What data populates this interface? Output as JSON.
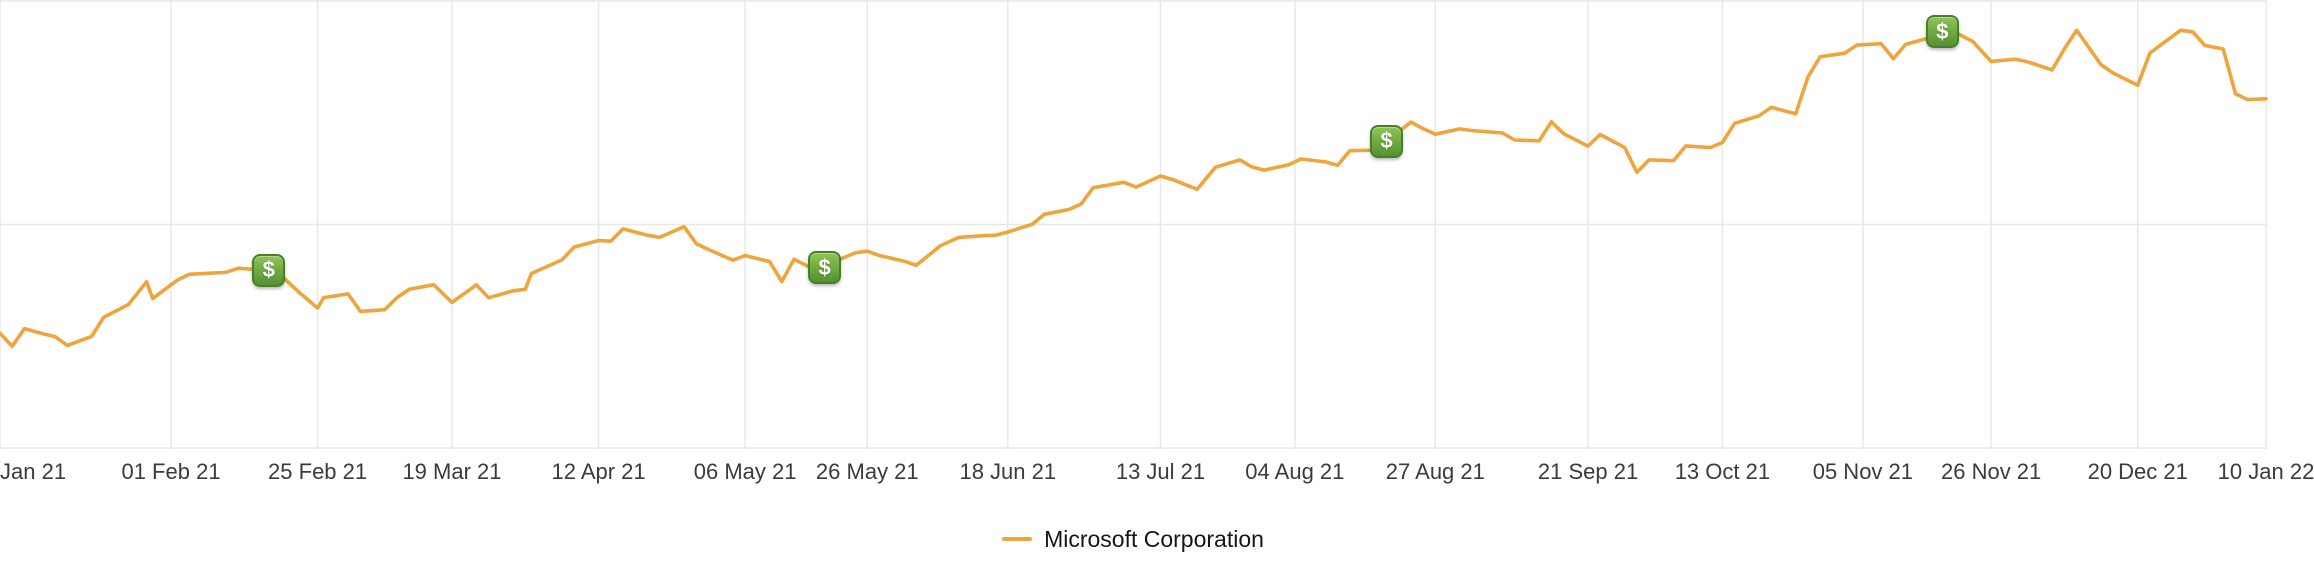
{
  "chart_data": {
    "type": "line",
    "x_start": "2021-01-04",
    "x_end": "2022-01-10",
    "ylim": [
      170,
      355
    ],
    "grid": true,
    "legend_position": "bottom-center",
    "colors": {
      "line": "#F0A43C",
      "grid": "#e8e8e8",
      "axis_text": "#3b3b3b",
      "marker_top": "#8FC455",
      "marker_bottom": "#549130",
      "marker_border": "#497F2B",
      "marker_text": "#ffffff"
    },
    "x_ticks": [
      {
        "date": "2021-01-04",
        "label": "Jan 21",
        "align": "left"
      },
      {
        "date": "2021-02-01",
        "label": "01 Feb 21"
      },
      {
        "date": "2021-02-25",
        "label": "25 Feb 21"
      },
      {
        "date": "2021-03-19",
        "label": "19 Mar 21"
      },
      {
        "date": "2021-04-12",
        "label": "12 Apr 21"
      },
      {
        "date": "2021-05-06",
        "label": "06 May 21"
      },
      {
        "date": "2021-05-26",
        "label": "26 May 21"
      },
      {
        "date": "2021-06-18",
        "label": "18 Jun 21"
      },
      {
        "date": "2021-07-13",
        "label": "13 Jul 21"
      },
      {
        "date": "2021-08-04",
        "label": "04 Aug 21"
      },
      {
        "date": "2021-08-27",
        "label": "27 Aug 21"
      },
      {
        "date": "2021-09-21",
        "label": "21 Sep 21"
      },
      {
        "date": "2021-10-13",
        "label": "13 Oct 21"
      },
      {
        "date": "2021-11-05",
        "label": "05 Nov 21"
      },
      {
        "date": "2021-11-26",
        "label": "26 Nov 21"
      },
      {
        "date": "2021-12-20",
        "label": "20 Dec 21"
      },
      {
        "date": "2022-01-10",
        "label": "10 Jan 22"
      }
    ],
    "event_markers": [
      {
        "date": "2021-02-17",
        "type": "dividend",
        "label": "$"
      },
      {
        "date": "2021-05-19",
        "type": "dividend",
        "label": "$"
      },
      {
        "date": "2021-08-19",
        "type": "dividend",
        "label": "$"
      },
      {
        "date": "2021-11-18",
        "type": "dividend",
        "label": "$"
      }
    ],
    "series": [
      {
        "name": "Microsoft Corporation",
        "color": "#F0A43C",
        "points": [
          [
            "2021-01-04",
            217.7
          ],
          [
            "2021-01-06",
            212.3
          ],
          [
            "2021-01-08",
            219.6
          ],
          [
            "2021-01-11",
            217.5
          ],
          [
            "2021-01-13",
            216.3
          ],
          [
            "2021-01-15",
            212.7
          ],
          [
            "2021-01-19",
            216.4
          ],
          [
            "2021-01-21",
            224.3
          ],
          [
            "2021-01-25",
            229.5
          ],
          [
            "2021-01-28",
            238.9
          ],
          [
            "2021-01-29",
            232.0
          ],
          [
            "2021-02-02",
            239.5
          ],
          [
            "2021-02-04",
            242.0
          ],
          [
            "2021-02-08",
            242.5
          ],
          [
            "2021-02-10",
            242.8
          ],
          [
            "2021-02-12",
            244.5
          ],
          [
            "2021-02-16",
            243.7
          ],
          [
            "2021-02-18",
            243.8
          ],
          [
            "2021-02-22",
            234.5
          ],
          [
            "2021-02-25",
            228.1
          ],
          [
            "2021-02-26",
            232.4
          ],
          [
            "2021-03-02",
            233.9
          ],
          [
            "2021-03-04",
            226.7
          ],
          [
            "2021-03-08",
            227.4
          ],
          [
            "2021-03-10",
            232.4
          ],
          [
            "2021-03-12",
            235.8
          ],
          [
            "2021-03-16",
            237.7
          ],
          [
            "2021-03-19",
            230.4
          ],
          [
            "2021-03-23",
            237.6
          ],
          [
            "2021-03-25",
            232.3
          ],
          [
            "2021-03-29",
            235.2
          ],
          [
            "2021-03-31",
            235.8
          ],
          [
            "2021-04-01",
            242.3
          ],
          [
            "2021-04-06",
            247.9
          ],
          [
            "2021-04-08",
            253.2
          ],
          [
            "2021-04-12",
            255.9
          ],
          [
            "2021-04-14",
            255.6
          ],
          [
            "2021-04-16",
            260.7
          ],
          [
            "2021-04-20",
            258.1
          ],
          [
            "2021-04-22",
            257.2
          ],
          [
            "2021-04-26",
            261.6
          ],
          [
            "2021-04-28",
            254.6
          ],
          [
            "2021-04-30",
            252.2
          ],
          [
            "2021-05-04",
            247.8
          ],
          [
            "2021-05-06",
            249.7
          ],
          [
            "2021-05-10",
            247.2
          ],
          [
            "2021-05-12",
            239.0
          ],
          [
            "2021-05-14",
            248.2
          ],
          [
            "2021-05-18",
            243.1
          ],
          [
            "2021-05-20",
            246.5
          ],
          [
            "2021-05-24",
            250.8
          ],
          [
            "2021-05-26",
            251.5
          ],
          [
            "2021-05-28",
            249.7
          ],
          [
            "2021-06-01",
            247.4
          ],
          [
            "2021-06-03",
            245.7
          ],
          [
            "2021-06-07",
            253.8
          ],
          [
            "2021-06-10",
            257.2
          ],
          [
            "2021-06-14",
            257.9
          ],
          [
            "2021-06-16",
            258.1
          ],
          [
            "2021-06-18",
            259.4
          ],
          [
            "2021-06-22",
            262.6
          ],
          [
            "2021-06-24",
            266.7
          ],
          [
            "2021-06-28",
            268.7
          ],
          [
            "2021-06-30",
            270.9
          ],
          [
            "2021-07-02",
            277.7
          ],
          [
            "2021-07-07",
            279.9
          ],
          [
            "2021-07-09",
            277.9
          ],
          [
            "2021-07-13",
            282.5
          ],
          [
            "2021-07-15",
            281.0
          ],
          [
            "2021-07-19",
            277.0
          ],
          [
            "2021-07-22",
            286.1
          ],
          [
            "2021-07-26",
            289.1
          ],
          [
            "2021-07-28",
            286.2
          ],
          [
            "2021-07-30",
            284.9
          ],
          [
            "2021-08-03",
            287.1
          ],
          [
            "2021-08-05",
            289.5
          ],
          [
            "2021-08-09",
            288.3
          ],
          [
            "2021-08-11",
            286.9
          ],
          [
            "2021-08-13",
            292.9
          ],
          [
            "2021-08-17",
            293.1
          ],
          [
            "2021-08-19",
            296.8
          ],
          [
            "2021-08-23",
            304.7
          ],
          [
            "2021-08-25",
            302.0
          ],
          [
            "2021-08-27",
            299.7
          ],
          [
            "2021-08-31",
            301.9
          ],
          [
            "2021-09-02",
            301.2
          ],
          [
            "2021-09-07",
            300.2
          ],
          [
            "2021-09-09",
            297.3
          ],
          [
            "2021-09-13",
            297.0
          ],
          [
            "2021-09-15",
            304.8
          ],
          [
            "2021-09-17",
            299.9
          ],
          [
            "2021-09-21",
            294.8
          ],
          [
            "2021-09-23",
            299.6
          ],
          [
            "2021-09-27",
            294.2
          ],
          [
            "2021-09-29",
            284.0
          ],
          [
            "2021-10-01",
            289.1
          ],
          [
            "2021-10-05",
            288.8
          ],
          [
            "2021-10-07",
            294.9
          ],
          [
            "2021-10-11",
            294.2
          ],
          [
            "2021-10-13",
            296.3
          ],
          [
            "2021-10-15",
            304.2
          ],
          [
            "2021-10-19",
            307.3
          ],
          [
            "2021-10-21",
            310.8
          ],
          [
            "2021-10-25",
            308.1
          ],
          [
            "2021-10-27",
            323.2
          ],
          [
            "2021-10-29",
            331.6
          ],
          [
            "2021-11-02",
            333.1
          ],
          [
            "2021-11-04",
            336.4
          ],
          [
            "2021-11-08",
            337.0
          ],
          [
            "2021-11-10",
            330.8
          ],
          [
            "2021-11-12",
            336.7
          ],
          [
            "2021-11-16",
            339.5
          ],
          [
            "2021-11-19",
            343.1
          ],
          [
            "2021-11-23",
            337.9
          ],
          [
            "2021-11-26",
            329.7
          ],
          [
            "2021-11-30",
            330.6
          ],
          [
            "2021-12-02",
            329.5
          ],
          [
            "2021-12-06",
            326.2
          ],
          [
            "2021-12-08",
            334.9
          ],
          [
            "2021-12-10",
            342.5
          ],
          [
            "2021-12-14",
            328.3
          ],
          [
            "2021-12-16",
            324.9
          ],
          [
            "2021-12-20",
            319.9
          ],
          [
            "2021-12-22",
            333.2
          ],
          [
            "2021-12-27",
            342.5
          ],
          [
            "2021-12-29",
            341.9
          ],
          [
            "2021-12-31",
            336.3
          ],
          [
            "2022-01-03",
            334.8
          ],
          [
            "2022-01-05",
            316.4
          ],
          [
            "2022-01-07",
            314.0
          ],
          [
            "2022-01-10",
            314.3
          ]
        ]
      }
    ]
  }
}
